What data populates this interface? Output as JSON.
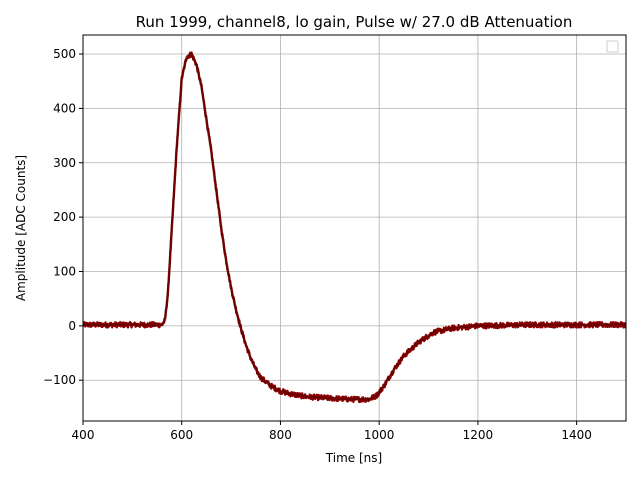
{
  "chart_data": {
    "type": "line",
    "title": "Run 1999, channel8, lo gain, Pulse w/ 27.0 dB Attenuation",
    "xlabel": "Time [ns]",
    "ylabel": "Amplitude [ADC Counts]",
    "xlim": [
      400,
      1500
    ],
    "ylim": [
      -175,
      535
    ],
    "xticks": [
      400,
      600,
      800,
      1000,
      1200,
      1400
    ],
    "yticks": [
      -100,
      0,
      100,
      200,
      300,
      400,
      500
    ],
    "xtick_labels": [
      "400",
      "600",
      "800",
      "1000",
      "1200",
      "1400"
    ],
    "ytick_labels": [
      "−100",
      "0",
      "100",
      "200",
      "300",
      "400",
      "500"
    ],
    "grid": true,
    "legend": "top-right, empty",
    "colors": {
      "trace": "#8b0000",
      "trace_dark": "#5a0000",
      "grid": "#b0b0b0",
      "axes": "#000000"
    },
    "series": [
      {
        "x": [
          400,
          560,
          566,
          572,
          580,
          590,
          600,
          610,
          620,
          630,
          640,
          650,
          660,
          670,
          680,
          690,
          700,
          710,
          720,
          730,
          740,
          750,
          760,
          780,
          800,
          820,
          850,
          880,
          900,
          940,
          980,
          995,
          1010,
          1030,
          1050,
          1080,
          1110,
          1150,
          1200,
          1300,
          1400,
          1500
        ],
        "y": [
          2,
          2,
          10,
          60,
          180,
          330,
          455,
          495,
          500,
          480,
          440,
          380,
          320,
          250,
          180,
          120,
          70,
          30,
          -5,
          -35,
          -60,
          -80,
          -95,
          -110,
          -120,
          -125,
          -130,
          -132,
          -133,
          -135,
          -135,
          -128,
          -110,
          -80,
          -55,
          -30,
          -12,
          -4,
          0,
          2,
          2,
          2
        ],
        "noise": 5
      }
    ]
  }
}
